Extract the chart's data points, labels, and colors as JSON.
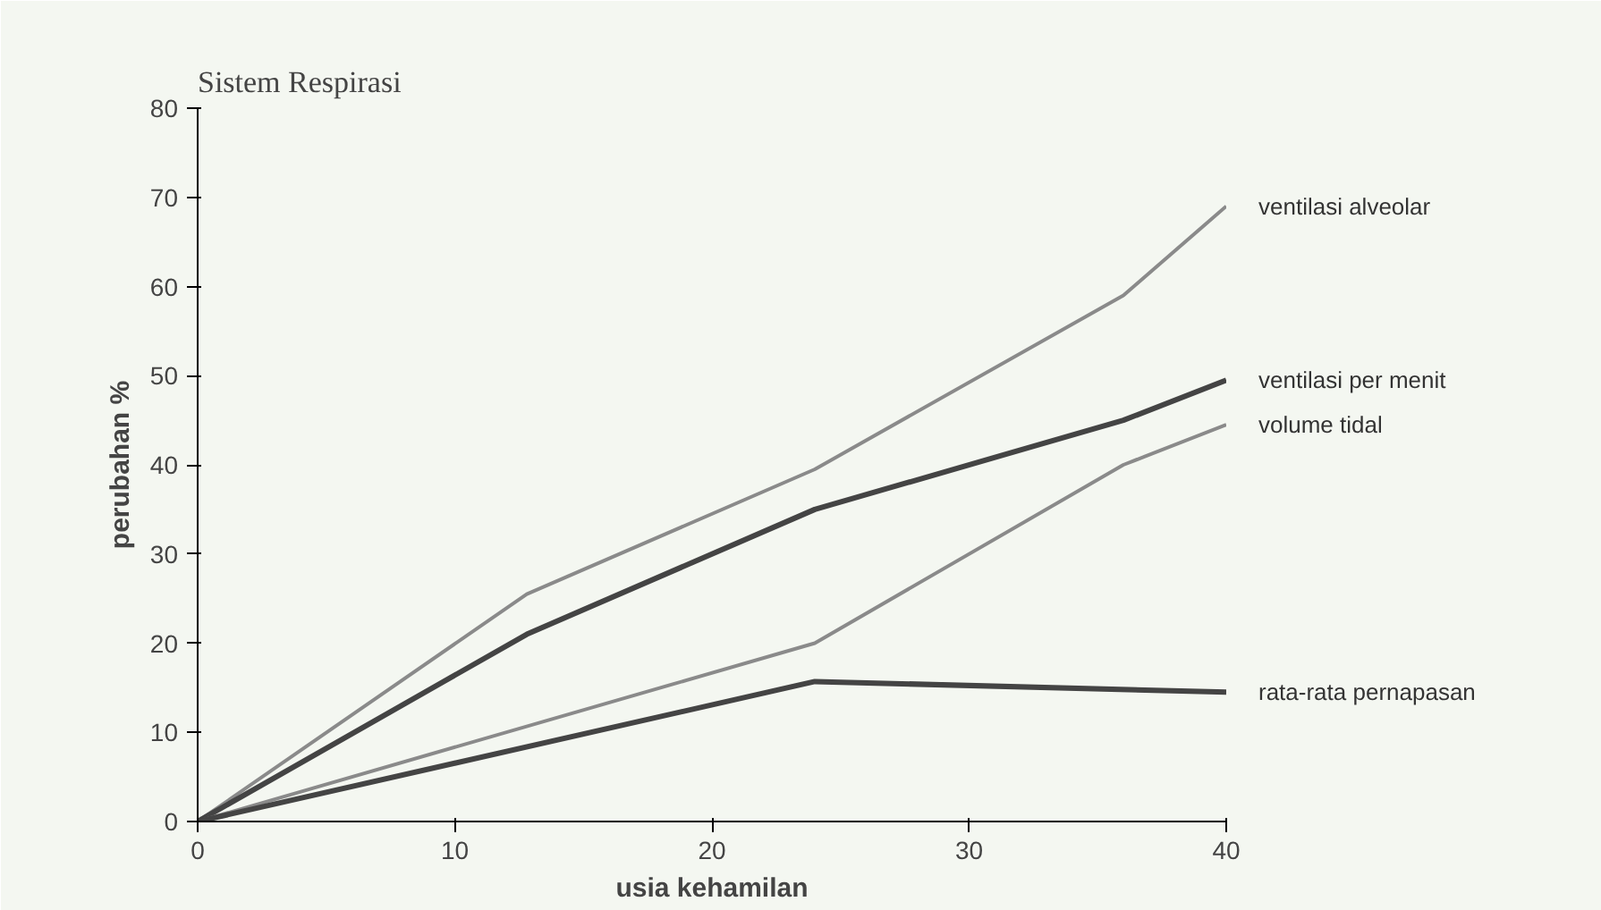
{
  "chart_data": {
    "type": "line",
    "title": "Sistem Respirasi",
    "xlabel": "usia kehamilan",
    "ylabel": "perubahan %",
    "xlim": [
      0,
      40
    ],
    "xticks": [
      0,
      10,
      20,
      30,
      40
    ],
    "ylim": [
      0,
      80
    ],
    "yticks": [
      0,
      10,
      20,
      30,
      40,
      50,
      60,
      70,
      80
    ],
    "grid": false,
    "legend": false,
    "series": [
      {
        "name": "ventilasi alveolar",
        "color": "#8a8a8a",
        "x": [
          0,
          12.8,
          24,
          36,
          40
        ],
        "values": [
          0,
          25.5,
          39.5,
          59,
          69
        ]
      },
      {
        "name": "ventilasi per menit",
        "color": "#444444",
        "x": [
          0,
          12.8,
          24,
          36,
          40
        ],
        "values": [
          0,
          21,
          35,
          45,
          49.5
        ]
      },
      {
        "name": "volume tidal",
        "color": "#8a8a8a",
        "x": [
          0,
          24,
          36,
          40
        ],
        "values": [
          0,
          20,
          40,
          44.5
        ]
      },
      {
        "name": "rata-rata pernapasan",
        "color": "#444444",
        "x": [
          0,
          24,
          40
        ],
        "values": [
          0,
          15.7,
          14.5
        ]
      }
    ]
  }
}
